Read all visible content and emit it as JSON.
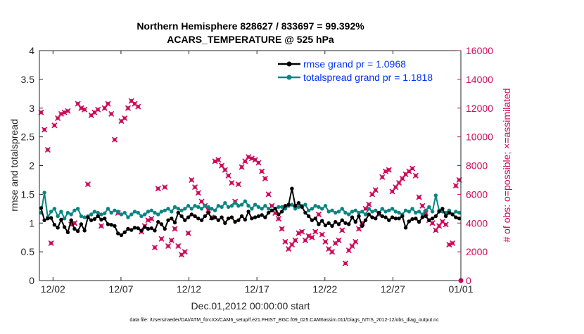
{
  "chart_data": {
    "type": "line",
    "title_line1": "Northern Hemisphere 828627 / 833697 = 99.392%",
    "title_line2": "ACARS_TEMPERATURE @ 525 hPa",
    "xlabel": "Dec.01,2012 00:00:00 start",
    "ylabel_left": "rmse and totalspread",
    "ylabel_right": "# of obs: o=possible; ×=assimilated",
    "footer": "data file: /Users/raeder/DAI/ATM_forcXX/CAM6_setup/f.e21.FHIST_BGC.f09_025.CAM6assim.011/Diags_NTrS_2012-12/obs_diag_output.nc",
    "x_unit": "days since Dec.01,2012",
    "xlim": [
      0,
      31
    ],
    "x_ticks": [
      {
        "value": 1,
        "label": "12/02"
      },
      {
        "value": 6,
        "label": "12/07"
      },
      {
        "value": 11,
        "label": "12/12"
      },
      {
        "value": 16,
        "label": "12/17"
      },
      {
        "value": 21,
        "label": "12/22"
      },
      {
        "value": 26,
        "label": "12/27"
      },
      {
        "value": 31,
        "label": "01/01"
      }
    ],
    "ylim_left": [
      0,
      4
    ],
    "yticks_left": [
      "0",
      "0.5",
      "1",
      "1.5",
      "2",
      "2.5",
      "3",
      "3.5",
      "4"
    ],
    "ylim_right": [
      0,
      16000
    ],
    "yticks_right": [
      "0",
      "2000",
      "4000",
      "6000",
      "8000",
      "10000",
      "12000",
      "14000",
      "16000"
    ],
    "legend_position": "top-right",
    "colors": {
      "rmse": "#000000",
      "totalspread": "#0a8582",
      "obs": "#cc0a5a",
      "legend_text": "#0033ff"
    },
    "series": [
      {
        "name": "rmse grand pr = 1.0968",
        "axis": "left",
        "values": [
          1.26,
          1.05,
          1.08,
          1.09,
          0.97,
          0.92,
          1.06,
          0.93,
          0.84,
          1.05,
          0.9,
          0.86,
          0.98,
          0.87,
          1.1,
          1.05,
          1.07,
          1.12,
          1.06,
          1.08,
          0.98,
          0.97,
          0.95,
          0.82,
          0.79,
          0.84,
          0.9,
          0.88,
          0.92,
          0.91,
          0.87,
          0.93,
          0.9,
          0.91,
          0.87,
          1.02,
          0.98,
          0.9,
          1.05,
          1.08,
          1.01,
          1.18,
          1.12,
          1.05,
          1.1,
          1.15,
          1.12,
          1.08,
          1.05,
          1.12,
          1.18,
          1.08,
          1.1,
          1.05,
          1.1,
          1.0,
          1.08,
          1.1,
          1.02,
          1.05,
          1.12,
          1.06,
          1.2,
          1.08,
          1.1,
          1.12,
          1.14,
          1.1,
          1.18,
          1.22,
          1.25,
          1.15,
          1.2,
          1.3,
          1.32,
          1.6,
          1.3,
          1.35,
          1.28,
          1.18,
          1.12,
          1.05,
          1.08,
          0.98,
          1.04,
          0.96,
          1.0,
          0.95,
          1.02,
          0.98,
          1.05,
          1.0,
          0.98,
          1.1,
          1.02,
          1.12,
          0.95,
          1.05,
          1.15,
          1.1,
          1.08,
          1.18,
          1.12,
          1.1,
          1.05,
          1.1,
          1.08,
          1.08,
          1.12,
          0.92,
          1.03,
          1.07,
          1.08,
          1.02,
          1.1,
          1.12,
          1.05,
          1.08,
          1.12,
          1.2,
          1.25,
          1.12,
          1.18,
          1.15,
          1.1,
          1.08
        ]
      },
      {
        "name": "totalspread grand pr = 1.1818",
        "axis": "left",
        "values": [
          1.18,
          1.53,
          1.1,
          1.2,
          1.25,
          1.12,
          1.2,
          1.08,
          1.18,
          1.15,
          1.22,
          1.25,
          1.12,
          1.1,
          1.12,
          1.15,
          1.2,
          1.18,
          1.15,
          1.17,
          1.25,
          1.18,
          1.22,
          1.2,
          1.15,
          1.18,
          1.1,
          1.15,
          1.2,
          1.18,
          1.12,
          1.15,
          1.2,
          1.22,
          1.18,
          1.15,
          1.2,
          1.22,
          1.25,
          1.2,
          1.28,
          1.25,
          1.22,
          1.25,
          1.3,
          1.25,
          1.3,
          1.28,
          1.25,
          1.3,
          1.28,
          1.25,
          1.22,
          1.3,
          1.28,
          1.35,
          1.28,
          1.3,
          1.35,
          1.3,
          1.32,
          1.38,
          1.3,
          1.25,
          1.32,
          1.28,
          1.25,
          1.3,
          1.25,
          1.22,
          1.25,
          1.28,
          1.28,
          1.25,
          1.3,
          1.32,
          1.25,
          1.28,
          1.3,
          1.32,
          1.22,
          1.25,
          1.3,
          1.28,
          1.25,
          1.3,
          1.2,
          1.22,
          1.18,
          1.2,
          1.25,
          1.18,
          1.15,
          1.2,
          1.22,
          1.18,
          1.2,
          1.15,
          1.25,
          1.2,
          1.22,
          1.18,
          1.25,
          1.2,
          1.22,
          1.25,
          1.2,
          1.18,
          1.15,
          1.22,
          1.2,
          1.25,
          1.18,
          1.2,
          1.15,
          1.22,
          1.28,
          1.2,
          1.48,
          1.22,
          1.2,
          1.18,
          1.22,
          1.15,
          1.2,
          1.18
        ]
      },
      {
        "name": "obs assimilated",
        "axis": "right",
        "values": [
          11700,
          10500,
          9100,
          2600,
          10800,
          11300,
          11600,
          11700,
          11800,
          3900,
          4000,
          12300,
          12000,
          11900,
          6700,
          11500,
          11700,
          11900,
          3800,
          12000,
          12300,
          11600,
          9800,
          4700,
          11100,
          11300,
          12000,
          12500,
          12300,
          12100,
          3400,
          3800,
          4200,
          4300,
          2300,
          6400,
          2900,
          6500,
          2400,
          2800,
          3600,
          2400,
          1800,
          2000,
          3300,
          7000,
          6500,
          6100,
          5500,
          5200,
          4900,
          4400,
          8300,
          8400,
          8000,
          7700,
          7300,
          6800,
          5500,
          6700,
          7900,
          8300,
          8600,
          8500,
          8400,
          8200,
          7600,
          7100,
          6000,
          5200,
          4700,
          4300,
          3600,
          2700,
          2200,
          2500,
          2800,
          3300,
          3400,
          2800,
          3100,
          3000,
          3400,
          4600,
          3200,
          2700,
          2200,
          2000,
          2600,
          2800,
          3500,
          1200,
          2100,
          2400,
          2700,
          3600,
          4000,
          5000,
          5300,
          6000,
          6300,
          4600,
          7200,
          7600,
          7700,
          6200,
          6500,
          6800,
          7100,
          7400,
          7600,
          7800,
          7300,
          5800,
          5200,
          4700,
          4200,
          4000,
          3500,
          3800,
          4100,
          3900,
          2500,
          2600,
          6600,
          7000
        ]
      }
    ],
    "legend": [
      {
        "label": "rmse grand pr = 1.0968",
        "color": "#000000"
      },
      {
        "label": "totalspread grand pr = 1.1818",
        "color": "#0a8582"
      }
    ]
  }
}
